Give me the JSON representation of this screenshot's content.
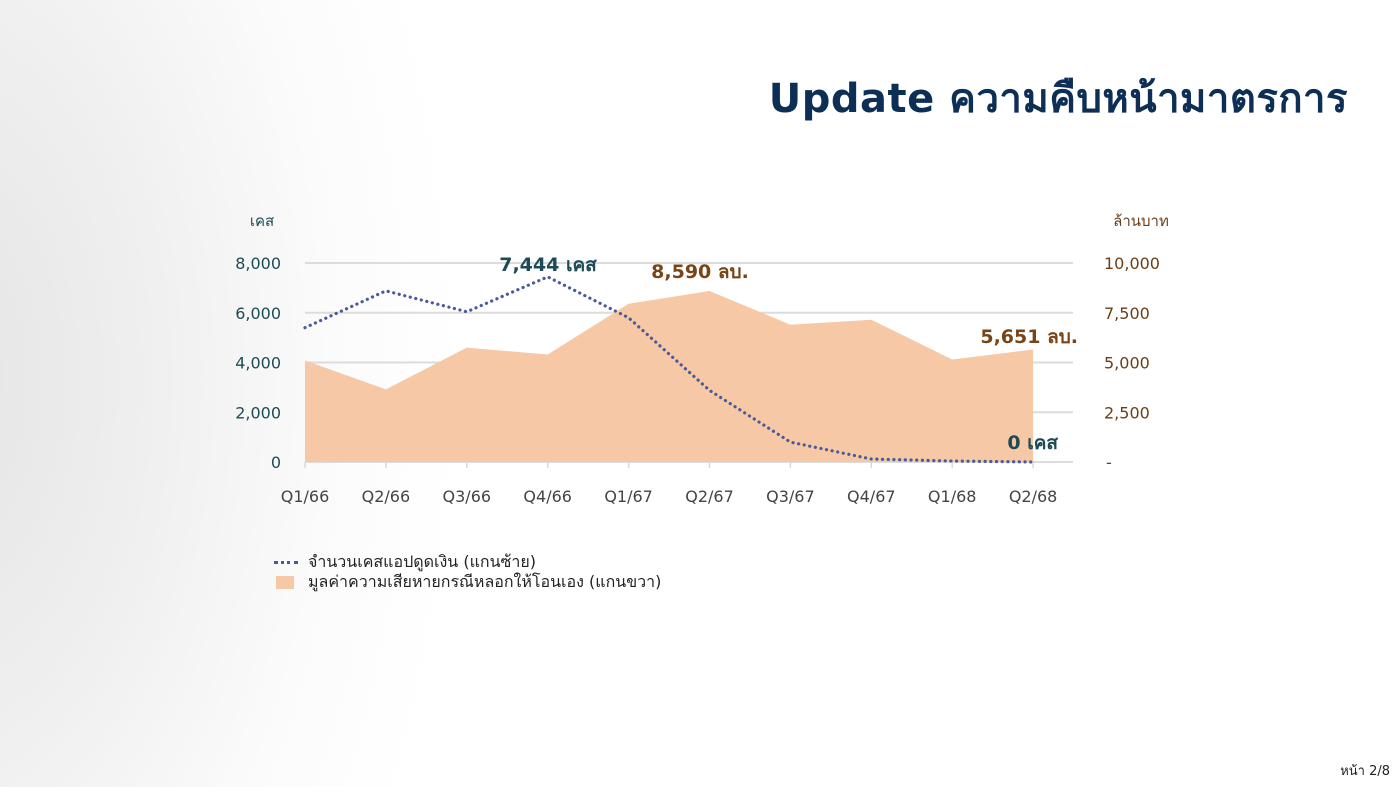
{
  "slide": {
    "title": "Update ความคืบหน้ามาตรการ",
    "page_label": "หน้า 2/8"
  },
  "chart_data": {
    "type": "line+area",
    "title": "Update ความคืบหน้ามาตรการ",
    "categories": [
      "Q1/66",
      "Q2/66",
      "Q3/66",
      "Q4/66",
      "Q1/67",
      "Q2/67",
      "Q3/67",
      "Q4/67",
      "Q1/68",
      "Q2/68"
    ],
    "y_left": {
      "label": "เคส",
      "ticks": [
        "8,000",
        "6,000",
        "4,000",
        "2,000",
        "0"
      ],
      "range": [
        0,
        8000
      ]
    },
    "y_right": {
      "label": "ล้านบาท",
      "ticks": [
        "10,000",
        "7,500",
        "5,000",
        "2,500",
        "-"
      ],
      "range": [
        0,
        10000
      ]
    },
    "series": [
      {
        "name": "จำนวนเคสแอปดูดเงิน (แกนซ้าย)",
        "type": "line",
        "style": "dotted",
        "axis": "left",
        "color": "#4a5a9a",
        "values": [
          5400,
          6880,
          6040,
          7444,
          5800,
          2880,
          800,
          120,
          40,
          0
        ]
      },
      {
        "name": "มูลค่าความเสียหายกรณีหลอกให้โอนเอง (แกนขวา)",
        "type": "area",
        "axis": "right",
        "color": "#f7c8a6",
        "values": [
          5100,
          3650,
          5750,
          5400,
          7950,
          8590,
          6900,
          7150,
          5150,
          5651
        ]
      }
    ],
    "annotations": [
      {
        "text": "7,444 เคส",
        "category": "Q4/66",
        "series": 0
      },
      {
        "text": "8,590 ลบ.",
        "category": "Q2/67",
        "series": 1
      },
      {
        "text": "5,651 ลบ.",
        "category": "Q2/68",
        "series": 1
      },
      {
        "text": "0 เคส",
        "category": "Q2/68",
        "series": 0
      }
    ],
    "grid": true,
    "legend_position": "bottom-left"
  },
  "legend": {
    "items": [
      {
        "label": "จำนวนเคสแอปดูดเงิน (แกนซ้าย)"
      },
      {
        "label": "มูลค่าความเสียหายกรณีหลอกให้โอนเอง (แกนขวา)"
      }
    ]
  }
}
